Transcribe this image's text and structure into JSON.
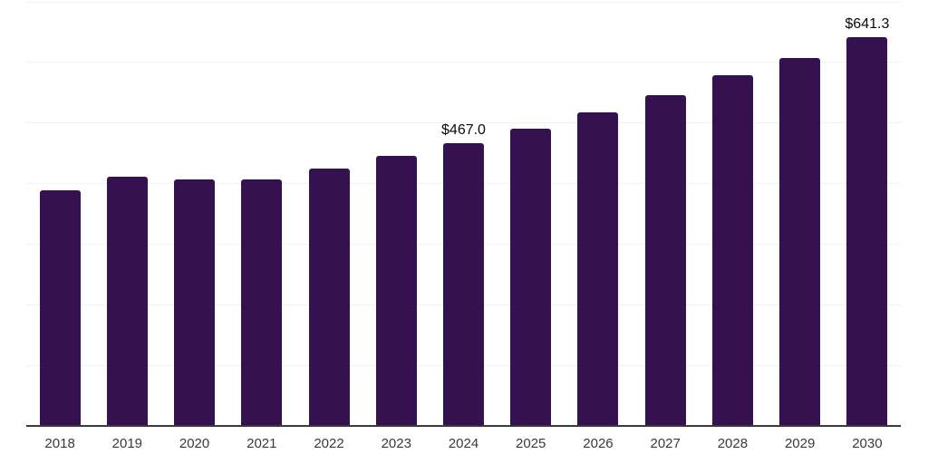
{
  "chart": {
    "background_color": "#ffffff",
    "bar_color": "#35124F",
    "gridline_color": "#f2f2f4",
    "axis_color": "#3a3a3a",
    "tick_label_color": "#3a3a3a",
    "value_label_color": "#0a0a0a"
  },
  "chart_data": {
    "type": "bar",
    "title": "",
    "xlabel": "",
    "ylabel": "",
    "categories": [
      "2018",
      "2019",
      "2020",
      "2021",
      "2022",
      "2023",
      "2024",
      "2025",
      "2026",
      "2027",
      "2028",
      "2029",
      "2030"
    ],
    "values": [
      388.8,
      411.9,
      406.7,
      407.2,
      424.7,
      445.6,
      467.0,
      490.9,
      517.4,
      545.8,
      578.3,
      607.1,
      641.3
    ],
    "labeled_points": [
      {
        "category": "2024",
        "label": "$467.0"
      },
      {
        "category": "2030",
        "label": "$641.3"
      }
    ],
    "ylim": [
      0,
      700
    ],
    "y_gridline_step": 100,
    "y_axis_labels_visible": false,
    "grid": "horizontal",
    "legend_position": "none"
  }
}
